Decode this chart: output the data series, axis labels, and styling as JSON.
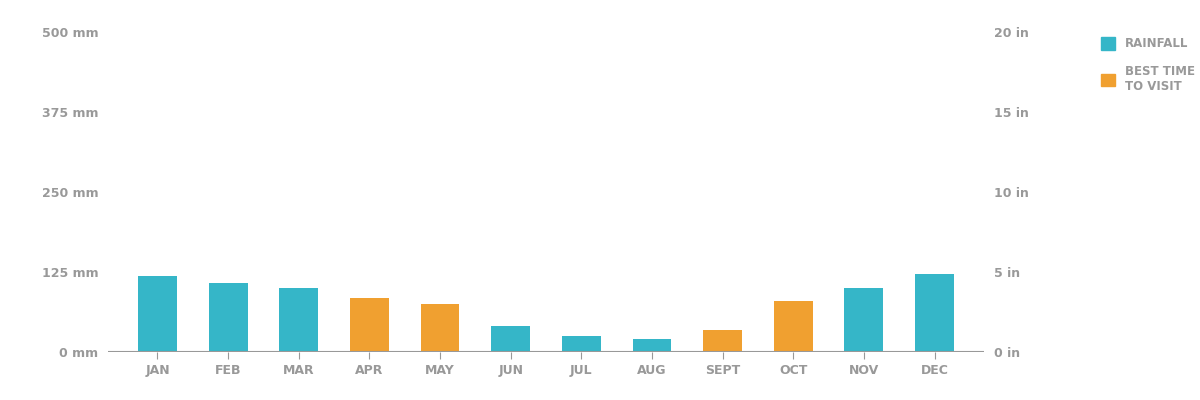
{
  "months": [
    "JAN",
    "FEB",
    "MAR",
    "APR",
    "MAY",
    "JUN",
    "JUL",
    "AUG",
    "SEPT",
    "OCT",
    "NOV",
    "DEC"
  ],
  "rainfall_mm": [
    118,
    108,
    100,
    0,
    0,
    40,
    25,
    20,
    0,
    0,
    100,
    122
  ],
  "best_time_mm": [
    0,
    0,
    0,
    85,
    75,
    0,
    0,
    0,
    35,
    80,
    0,
    0
  ],
  "rainfall_color": "#35b6c8",
  "best_time_color": "#f0a030",
  "axis_color": "#999999",
  "background_color": "#ffffff",
  "ylim_mm": [
    0,
    500
  ],
  "ylim_in": [
    0,
    20
  ],
  "yticks_mm": [
    0,
    125,
    250,
    375,
    500
  ],
  "yticks_in": [
    0,
    5,
    10,
    15,
    20
  ],
  "ytick_labels_mm": [
    "0 mm",
    "125 mm",
    "250 mm",
    "375 mm",
    "500 mm"
  ],
  "ytick_labels_in": [
    "0 in",
    "5 in",
    "10 in",
    "15 in",
    "20 in"
  ],
  "legend_rainfall": "RAINFALL",
  "legend_best_time": "BEST TIME\nTO VISIT",
  "bar_width": 0.55,
  "figsize": [
    12.0,
    4.0
  ],
  "dpi": 100
}
